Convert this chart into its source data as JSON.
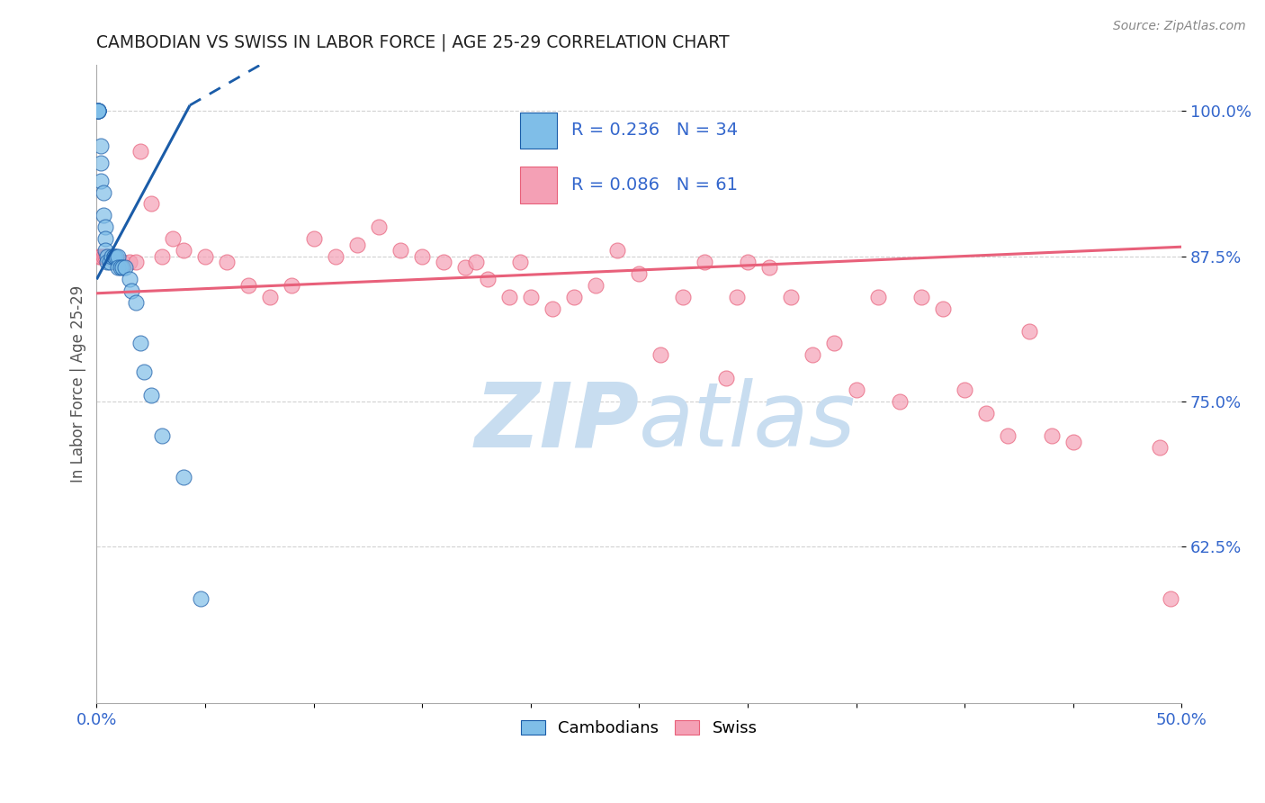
{
  "title": "CAMBODIAN VS SWISS IN LABOR FORCE | AGE 25-29 CORRELATION CHART",
  "source": "Source: ZipAtlas.com",
  "ylabel": "In Labor Force | Age 25-29",
  "xlim": [
    0.0,
    0.5
  ],
  "ylim": [
    0.49,
    1.04
  ],
  "yticks": [
    0.625,
    0.75,
    0.875,
    1.0
  ],
  "ytick_labels": [
    "62.5%",
    "75.0%",
    "87.5%",
    "100.0%"
  ],
  "xtick_labels_show": [
    "0.0%",
    "50.0%"
  ],
  "legend_cambodians": "Cambodians",
  "legend_swiss": "Swiss",
  "r_cambodian": 0.236,
  "n_cambodian": 34,
  "r_swiss": 0.086,
  "n_swiss": 61,
  "color_cambodian": "#7fbee8",
  "color_swiss": "#f4a0b5",
  "line_color_cambodian": "#1a5ca8",
  "line_color_swiss": "#e8607a",
  "watermark_zip": "ZIP",
  "watermark_atlas": "atlas",
  "watermark_color": "#c8ddf0",
  "background_color": "#ffffff",
  "axis_color": "#3366cc",
  "grid_color": "#cccccc",
  "cam_line_x0": 0.0,
  "cam_line_x1": 0.043,
  "cam_line_y0": 0.855,
  "cam_line_y1": 1.005,
  "cam_line_dashed_x0": 0.043,
  "cam_line_dashed_x1": 0.085,
  "cam_line_dashed_y0": 1.005,
  "cam_line_dashed_y1": 1.05,
  "swiss_line_x0": 0.0,
  "swiss_line_x1": 0.5,
  "swiss_line_y0": 0.843,
  "swiss_line_y1": 0.883,
  "cambodian_x": [
    0.0008,
    0.0008,
    0.0008,
    0.0008,
    0.0008,
    0.002,
    0.002,
    0.002,
    0.003,
    0.003,
    0.004,
    0.004,
    0.004,
    0.005,
    0.005,
    0.006,
    0.007,
    0.008,
    0.008,
    0.009,
    0.01,
    0.01,
    0.011,
    0.012,
    0.013,
    0.015,
    0.016,
    0.018,
    0.02,
    0.022,
    0.025,
    0.03,
    0.04,
    0.048
  ],
  "cambodian_y": [
    1.0,
    1.0,
    1.0,
    1.0,
    1.0,
    0.97,
    0.955,
    0.94,
    0.93,
    0.91,
    0.9,
    0.89,
    0.88,
    0.875,
    0.87,
    0.87,
    0.875,
    0.875,
    0.875,
    0.875,
    0.875,
    0.865,
    0.865,
    0.865,
    0.865,
    0.855,
    0.845,
    0.835,
    0.8,
    0.775,
    0.755,
    0.72,
    0.685,
    0.58
  ],
  "swiss_x": [
    0.001,
    0.002,
    0.003,
    0.004,
    0.005,
    0.008,
    0.01,
    0.012,
    0.015,
    0.018,
    0.02,
    0.025,
    0.03,
    0.035,
    0.04,
    0.05,
    0.06,
    0.07,
    0.08,
    0.09,
    0.1,
    0.11,
    0.12,
    0.13,
    0.14,
    0.15,
    0.16,
    0.17,
    0.175,
    0.18,
    0.19,
    0.195,
    0.2,
    0.21,
    0.22,
    0.23,
    0.24,
    0.25,
    0.26,
    0.27,
    0.28,
    0.29,
    0.295,
    0.3,
    0.31,
    0.32,
    0.33,
    0.34,
    0.35,
    0.36,
    0.37,
    0.38,
    0.39,
    0.4,
    0.41,
    0.42,
    0.43,
    0.44,
    0.45,
    0.49,
    0.495
  ],
  "swiss_y": [
    0.875,
    0.875,
    0.875,
    0.875,
    0.875,
    0.87,
    0.87,
    0.87,
    0.87,
    0.87,
    0.965,
    0.92,
    0.875,
    0.89,
    0.88,
    0.875,
    0.87,
    0.85,
    0.84,
    0.85,
    0.89,
    0.875,
    0.885,
    0.9,
    0.88,
    0.875,
    0.87,
    0.865,
    0.87,
    0.855,
    0.84,
    0.87,
    0.84,
    0.83,
    0.84,
    0.85,
    0.88,
    0.86,
    0.79,
    0.84,
    0.87,
    0.77,
    0.84,
    0.87,
    0.865,
    0.84,
    0.79,
    0.8,
    0.76,
    0.84,
    0.75,
    0.84,
    0.83,
    0.76,
    0.74,
    0.72,
    0.81,
    0.72,
    0.715,
    0.71,
    0.58
  ]
}
